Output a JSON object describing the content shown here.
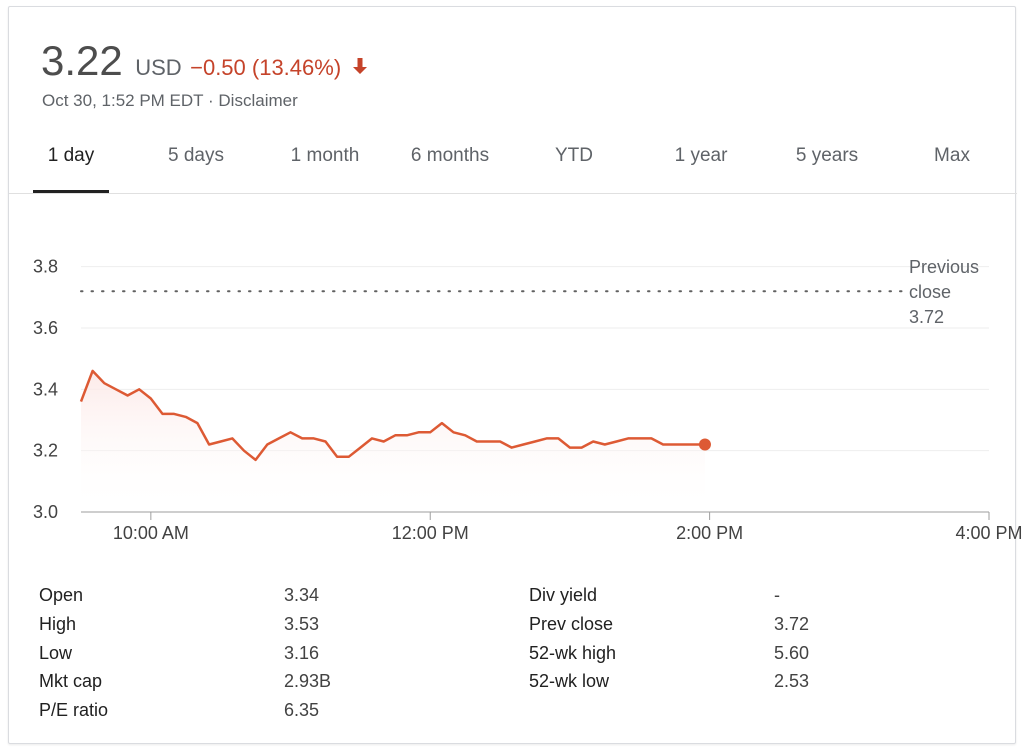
{
  "header": {
    "price": "3.22",
    "currency": "USD",
    "change": "−0.50 (13.46%)",
    "change_color": "#c5432a",
    "timestamp": "Oct 30, 1:52 PM EDT",
    "separator": "·",
    "disclaimer": "Disclaimer"
  },
  "tabs": [
    {
      "label": "1 day",
      "active": true
    },
    {
      "label": "5 days"
    },
    {
      "label": "1 month"
    },
    {
      "label": "6 months"
    },
    {
      "label": "YTD"
    },
    {
      "label": "1 year"
    },
    {
      "label": "5 years"
    },
    {
      "label": "Max"
    }
  ],
  "chart_data": {
    "type": "line",
    "line_color": "#dd5a34",
    "area_fill": "#fce8e6",
    "ylim": [
      3.0,
      3.9
    ],
    "yticks": [
      "3.8",
      "3.6",
      "3.4",
      "3.2",
      "3.0"
    ],
    "ytick_values": [
      3.8,
      3.6,
      3.4,
      3.2,
      3.0
    ],
    "xlim_minutes": [
      570,
      960
    ],
    "xticks": [
      "10:00 AM",
      "12:00 PM",
      "2:00 PM",
      "4:00 PM"
    ],
    "xtick_minutes": [
      600,
      720,
      840,
      960
    ],
    "grid": true,
    "previous_close": {
      "value": 3.72,
      "label_line1": "Previous",
      "label_line2": "close",
      "label_value": "3.72"
    },
    "series": [
      {
        "x_minutes": [
          570,
          575,
          580,
          585,
          590,
          595,
          600,
          605,
          610,
          615,
          620,
          625,
          630,
          635,
          640,
          645,
          650,
          655,
          660,
          665,
          670,
          675,
          680,
          685,
          690,
          695,
          700,
          705,
          710,
          715,
          720,
          725,
          730,
          735,
          740,
          745,
          750,
          755,
          760,
          765,
          770,
          775,
          780,
          785,
          790,
          795,
          800,
          805,
          810,
          815,
          820,
          825,
          830,
          835,
          838
        ],
        "values": [
          3.36,
          3.46,
          3.42,
          3.4,
          3.38,
          3.4,
          3.37,
          3.32,
          3.32,
          3.31,
          3.29,
          3.22,
          3.23,
          3.24,
          3.2,
          3.17,
          3.22,
          3.24,
          3.26,
          3.24,
          3.24,
          3.23,
          3.18,
          3.18,
          3.21,
          3.24,
          3.23,
          3.25,
          3.25,
          3.26,
          3.26,
          3.29,
          3.26,
          3.25,
          3.23,
          3.23,
          3.23,
          3.21,
          3.22,
          3.23,
          3.24,
          3.24,
          3.21,
          3.21,
          3.23,
          3.22,
          3.23,
          3.24,
          3.24,
          3.24,
          3.22,
          3.22,
          3.22,
          3.22,
          3.22
        ]
      }
    ]
  },
  "stats": {
    "left": [
      {
        "label": "Open",
        "value": "3.34"
      },
      {
        "label": "High",
        "value": "3.53"
      },
      {
        "label": "Low",
        "value": "3.16"
      },
      {
        "label": "Mkt cap",
        "value": "2.93B"
      },
      {
        "label": "P/E ratio",
        "value": "6.35"
      }
    ],
    "right": [
      {
        "label": "Div yield",
        "value": "-"
      },
      {
        "label": "Prev close",
        "value": "3.72"
      },
      {
        "label": "52-wk high",
        "value": "5.60"
      },
      {
        "label": "52-wk low",
        "value": "2.53"
      }
    ]
  }
}
